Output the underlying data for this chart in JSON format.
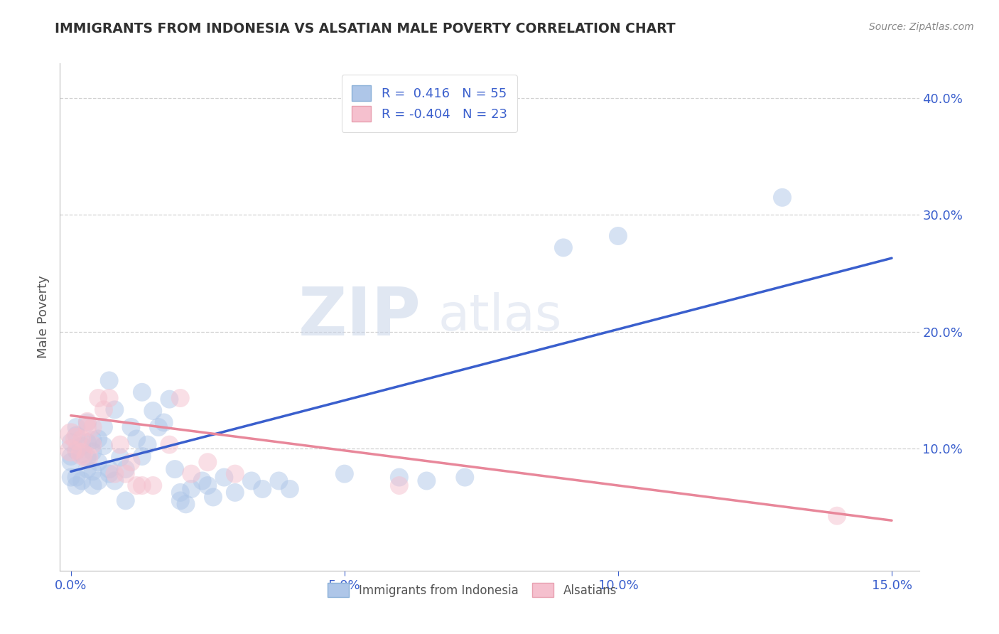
{
  "title": "IMMIGRANTS FROM INDONESIA VS ALSATIAN MALE POVERTY CORRELATION CHART",
  "source": "Source: ZipAtlas.com",
  "ylabel": "Male Poverty",
  "watermark_zip": "ZIP",
  "watermark_atlas": "atlas",
  "xlim": [
    -0.002,
    0.155
  ],
  "ylim": [
    -0.005,
    0.43
  ],
  "xticks": [
    0.0,
    0.05,
    0.1,
    0.15
  ],
  "xtick_labels": [
    "0.0%",
    "5.0%",
    "10.0%",
    "15.0%"
  ],
  "yticks": [
    0.1,
    0.2,
    0.3,
    0.4
  ],
  "ytick_labels": [
    "10.0%",
    "20.0%",
    "30.0%",
    "40.0%"
  ],
  "blue_scatter_color": "#aec6e8",
  "pink_scatter_color": "#f5c0ce",
  "blue_line_color": "#3a5fcd",
  "pink_line_color": "#e8879a",
  "grid_color": "#cccccc",
  "title_color": "#303030",
  "blue_points": [
    [
      0.0,
      0.105
    ],
    [
      0.0,
      0.093
    ],
    [
      0.001,
      0.111
    ],
    [
      0.001,
      0.098
    ],
    [
      0.001,
      0.118
    ],
    [
      0.002,
      0.102
    ],
    [
      0.002,
      0.095
    ],
    [
      0.003,
      0.105
    ],
    [
      0.003,
      0.092
    ],
    [
      0.003,
      0.122
    ],
    [
      0.004,
      0.107
    ],
    [
      0.004,
      0.097
    ],
    [
      0.004,
      0.08
    ],
    [
      0.005,
      0.108
    ],
    [
      0.005,
      0.088
    ],
    [
      0.006,
      0.118
    ],
    [
      0.006,
      0.102
    ],
    [
      0.007,
      0.082
    ],
    [
      0.007,
      0.078
    ],
    [
      0.007,
      0.158
    ],
    [
      0.008,
      0.072
    ],
    [
      0.008,
      0.133
    ],
    [
      0.009,
      0.092
    ],
    [
      0.01,
      0.082
    ],
    [
      0.01,
      0.055
    ],
    [
      0.011,
      0.118
    ],
    [
      0.012,
      0.108
    ],
    [
      0.013,
      0.148
    ],
    [
      0.013,
      0.093
    ],
    [
      0.014,
      0.103
    ],
    [
      0.015,
      0.132
    ],
    [
      0.016,
      0.118
    ],
    [
      0.017,
      0.122
    ],
    [
      0.018,
      0.142
    ],
    [
      0.019,
      0.082
    ],
    [
      0.02,
      0.055
    ],
    [
      0.02,
      0.062
    ],
    [
      0.021,
      0.052
    ],
    [
      0.022,
      0.065
    ],
    [
      0.024,
      0.072
    ],
    [
      0.025,
      0.068
    ],
    [
      0.026,
      0.058
    ],
    [
      0.028,
      0.075
    ],
    [
      0.03,
      0.062
    ],
    [
      0.033,
      0.072
    ],
    [
      0.035,
      0.065
    ],
    [
      0.038,
      0.072
    ],
    [
      0.04,
      0.065
    ],
    [
      0.05,
      0.078
    ],
    [
      0.06,
      0.075
    ],
    [
      0.065,
      0.072
    ],
    [
      0.072,
      0.075
    ],
    [
      0.09,
      0.272
    ],
    [
      0.1,
      0.282
    ],
    [
      0.13,
      0.315
    ]
  ],
  "pink_points": [
    [
      0.001,
      0.098
    ],
    [
      0.002,
      0.108
    ],
    [
      0.003,
      0.118
    ],
    [
      0.003,
      0.123
    ],
    [
      0.004,
      0.103
    ],
    [
      0.004,
      0.118
    ],
    [
      0.005,
      0.143
    ],
    [
      0.006,
      0.133
    ],
    [
      0.007,
      0.143
    ],
    [
      0.008,
      0.078
    ],
    [
      0.009,
      0.103
    ],
    [
      0.01,
      0.078
    ],
    [
      0.011,
      0.088
    ],
    [
      0.012,
      0.068
    ],
    [
      0.013,
      0.068
    ],
    [
      0.015,
      0.068
    ],
    [
      0.018,
      0.103
    ],
    [
      0.02,
      0.143
    ],
    [
      0.022,
      0.078
    ],
    [
      0.025,
      0.088
    ],
    [
      0.03,
      0.078
    ],
    [
      0.06,
      0.068
    ],
    [
      0.14,
      0.042
    ]
  ],
  "blue_line": [
    [
      0.0,
      0.08
    ],
    [
      0.15,
      0.263
    ]
  ],
  "pink_line": [
    [
      0.0,
      0.128
    ],
    [
      0.15,
      0.038
    ]
  ],
  "figsize": [
    14.06,
    8.92
  ],
  "dpi": 100
}
